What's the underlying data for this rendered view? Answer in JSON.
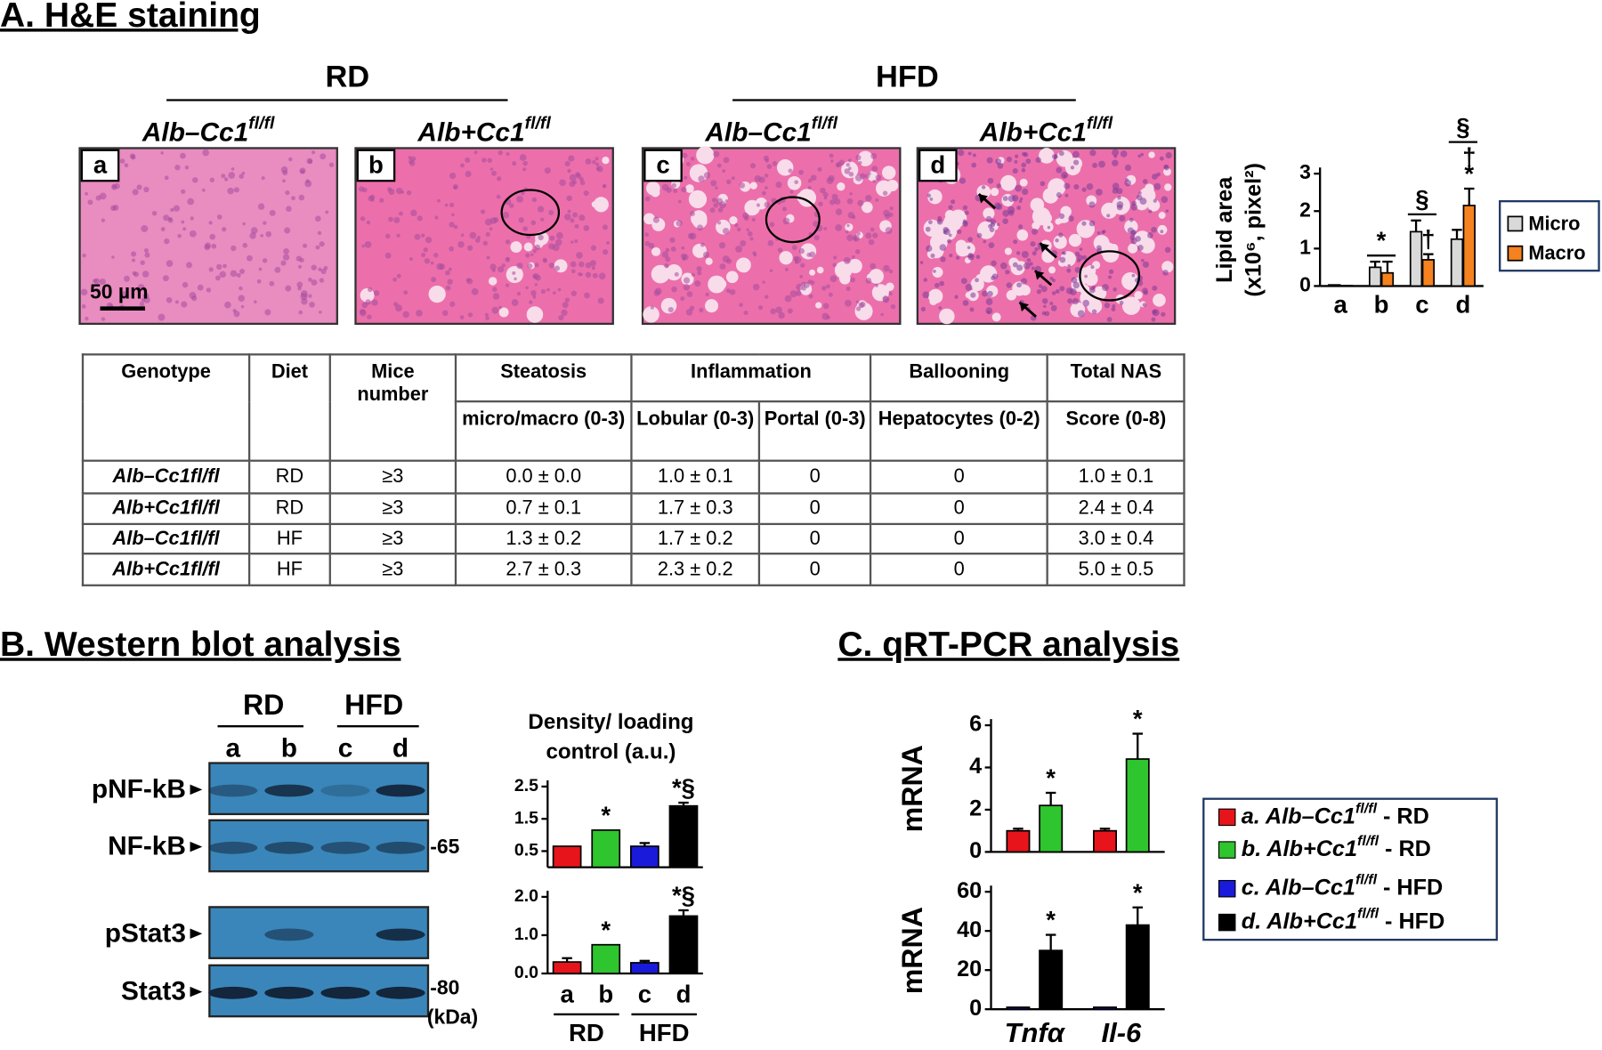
{
  "panel_a": {
    "title": "A. H&E staining",
    "groups": [
      "RD",
      "HFD"
    ],
    "images": [
      {
        "letter": "a",
        "genotype": {
          "main": "Alb–Cc1",
          "sup": "fl/fl"
        }
      },
      {
        "letter": "b",
        "genotype": {
          "main": "Alb+Cc1",
          "sup": "fl/fl"
        }
      },
      {
        "letter": "c",
        "genotype": {
          "main": "Alb–Cc1",
          "sup": "fl/fl"
        }
      },
      {
        "letter": "d",
        "genotype": {
          "main": "Alb+Cc1",
          "sup": "fl/fl"
        }
      }
    ],
    "scale_bar": "50 µm"
  },
  "table": {
    "header": [
      "Genotype",
      "Diet",
      "Mice number",
      "Steatosis",
      "Inflammation",
      "Ballooning",
      "Total NAS"
    ],
    "subheader": [
      "micro/macro (0-3)",
      "Lobular (0-3)",
      "Portal (0-3)",
      "Hepatocytes (0-2)",
      "Score (0-8)"
    ],
    "rows": [
      [
        "Alb–Cc1fl/fl",
        "RD",
        "≥3",
        "0.0 ± 0.0",
        "1.0 ± 0.1",
        "0",
        "0",
        "1.0 ± 0.1"
      ],
      [
        "Alb+Cc1fl/fl",
        "RD",
        "≥3",
        "0.7 ± 0.1",
        "1.7 ± 0.3",
        "0",
        "0",
        "2.4 ± 0.4"
      ],
      [
        "Alb–Cc1fl/fl",
        "HF",
        "≥3",
        "1.3 ± 0.2",
        "1.7 ± 0.2",
        "0",
        "0",
        "3.0 ± 0.4"
      ],
      [
        "Alb+Cc1fl/fl",
        "HF",
        "≥3",
        "2.7 ± 0.3",
        "2.3 ± 0.2",
        "0",
        "0",
        "5.0 ± 0.5"
      ]
    ]
  },
  "panel_b": {
    "title": "B. Western blot analysis",
    "groups": [
      "RD",
      "HFD"
    ],
    "lanes": [
      "a",
      "b",
      "c",
      "d"
    ],
    "blots": [
      "pNF-kB",
      "NF-kB",
      "pStat3",
      "Stat3"
    ],
    "markers": [
      "-65",
      "-80"
    ],
    "unit": "(kDa)"
  },
  "panel_c": {
    "title": "C. qRT-PCR analysis",
    "legend": [
      {
        "main": "a. Alb–Cc1",
        "sup": "fl/fl",
        "suffix": "- RD"
      },
      {
        "main": "b. Alb+Cc1",
        "sup": "fl/fl",
        "suffix": "- RD"
      },
      {
        "main": "c. Alb–Cc1",
        "sup": "fl/fl",
        "suffix": "- HFD"
      },
      {
        "main": "d. Alb+Cc1",
        "sup": "fl/fl",
        "suffix": "- HFD"
      }
    ]
  },
  "chart_data": [
    {
      "type": "bar",
      "ylabel": [
        "Lipid area",
        "(x10⁶, pixel²)"
      ],
      "categories": [
        "a",
        "b",
        "c",
        "d"
      ],
      "ylim": [
        0,
        3
      ],
      "yticks": [
        0,
        1,
        2,
        3
      ],
      "series": [
        {
          "name": "Micro",
          "color": "#d9d9d9",
          "values": [
            0.03,
            0.5,
            1.45,
            1.25
          ],
          "errors": [
            null,
            0.15,
            0.3,
            0.25
          ]
        },
        {
          "name": "Macro",
          "color": "#f5821f",
          "values": [
            0.01,
            0.35,
            0.7,
            2.15
          ],
          "errors": [
            null,
            0.3,
            0.15,
            0.45
          ],
          "annotations": [
            null,
            null,
            [
              "†"
            ],
            [
              "*",
              "†"
            ]
          ]
        }
      ],
      "category_annotations": [
        null,
        "*",
        "§",
        "§"
      ]
    },
    {
      "type": "bar",
      "title": [
        "Density/ loading",
        "control (a.u.)"
      ],
      "ylim": [
        0,
        2.5
      ],
      "yticks": [
        0.5,
        1.5,
        2.5
      ],
      "series": [
        {
          "colors": [
            "#e8141b",
            "#2ec52e",
            "#1a1adb",
            "#000000"
          ],
          "values": [
            0.65,
            1.15,
            0.65,
            1.9
          ],
          "errors": [
            null,
            null,
            0.1,
            0.1
          ],
          "annotations": [
            null,
            "*",
            null,
            "*§"
          ]
        }
      ]
    },
    {
      "type": "bar",
      "categories": [
        "a",
        "b",
        "c",
        "d"
      ],
      "groups": [
        "RD",
        "HFD"
      ],
      "ylim": [
        0,
        2
      ],
      "yticks": [
        {
          "value": 0,
          "label": "0.0"
        },
        {
          "value": 1,
          "label": "1.0"
        },
        {
          "value": 2,
          "label": "2.0"
        }
      ],
      "series": [
        {
          "colors": [
            "#e8141b",
            "#2ec52e",
            "#1a1adb",
            "#000000"
          ],
          "values": [
            0.3,
            0.75,
            0.28,
            1.5
          ],
          "errors": [
            0.1,
            null,
            0.05,
            0.15
          ],
          "annotations": [
            null,
            "*",
            null,
            "*§"
          ]
        }
      ]
    },
    {
      "type": "bar",
      "ylabel": [
        "mRNA"
      ],
      "ylim": [
        0,
        6
      ],
      "yticks": [
        0,
        2,
        4,
        6
      ],
      "series": [
        {
          "color": "#e8141b",
          "values": [
            1.0,
            1.0
          ],
          "errors": [
            0.1,
            0.1
          ]
        },
        {
          "color": "#2ec52e",
          "values": [
            2.2,
            4.4
          ],
          "errors": [
            0.6,
            1.2
          ],
          "annotations": [
            "*",
            "*"
          ]
        }
      ]
    },
    {
      "type": "bar",
      "ylabel": [
        "mRNA"
      ],
      "categories": [
        "Tnfα",
        "Il-6"
      ],
      "ylim": [
        0,
        60
      ],
      "yticks": [
        0,
        20,
        40,
        60
      ],
      "series": [
        {
          "color": "#1a1adb",
          "values": [
            1,
            1
          ]
        },
        {
          "color": "#000000",
          "values": [
            30,
            43
          ],
          "errors": [
            8,
            9
          ],
          "annotations": [
            "*",
            "*"
          ]
        }
      ]
    }
  ]
}
